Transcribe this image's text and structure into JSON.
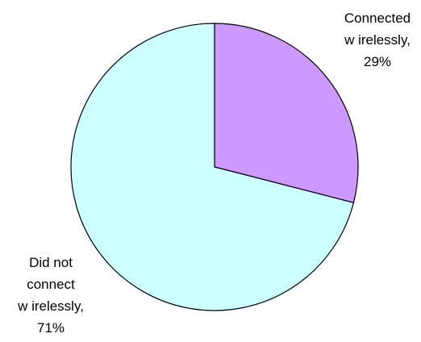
{
  "chart_data": {
    "type": "pie",
    "title": "",
    "start_angle_deg": 0,
    "direction": "clockwise",
    "slices": [
      {
        "label_lines": [
          "Connected",
          "w irelessly,",
          "29%"
        ],
        "value": 29,
        "color": "#cc99ff"
      },
      {
        "label_lines": [
          "Did not",
          "connect",
          "w irelessly,",
          "71%"
        ],
        "value": 71,
        "color": "#ccffff"
      }
    ],
    "edge_color": "#000000"
  }
}
